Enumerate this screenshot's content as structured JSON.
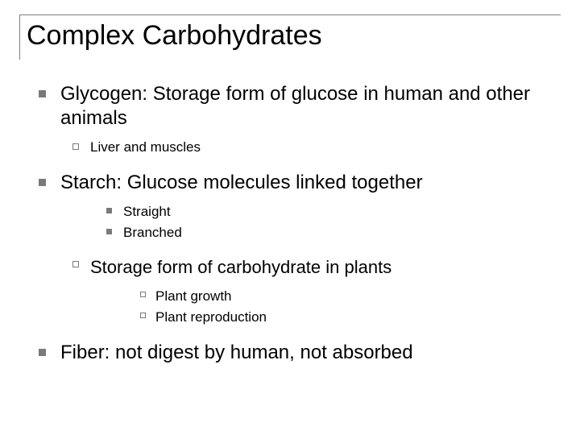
{
  "title": "Complex Carbohydrates",
  "colors": {
    "background": "#ffffff",
    "title_border": "#808080",
    "bullet": "#7a7a7a",
    "text": "#000000"
  },
  "typography": {
    "title_fontsize": 34,
    "lvl1_fontsize": 24,
    "lvl2_fontsize": 17,
    "lvl2b_fontsize": 22,
    "lvl3_fontsize": 17,
    "font_family": "Arial"
  },
  "items": {
    "glycogen": "Glycogen: Storage form of glucose in human and other animals",
    "glycogen_sub1": "Liver and muscles",
    "starch": "Starch: Glucose molecules linked together",
    "starch_sub1": "Straight",
    "starch_sub2": "Branched",
    "storage": "Storage form of carbohydrate in plants",
    "storage_sub1": "Plant growth",
    "storage_sub2": "Plant reproduction",
    "fiber": "Fiber: not digest by human, not absorbed"
  }
}
